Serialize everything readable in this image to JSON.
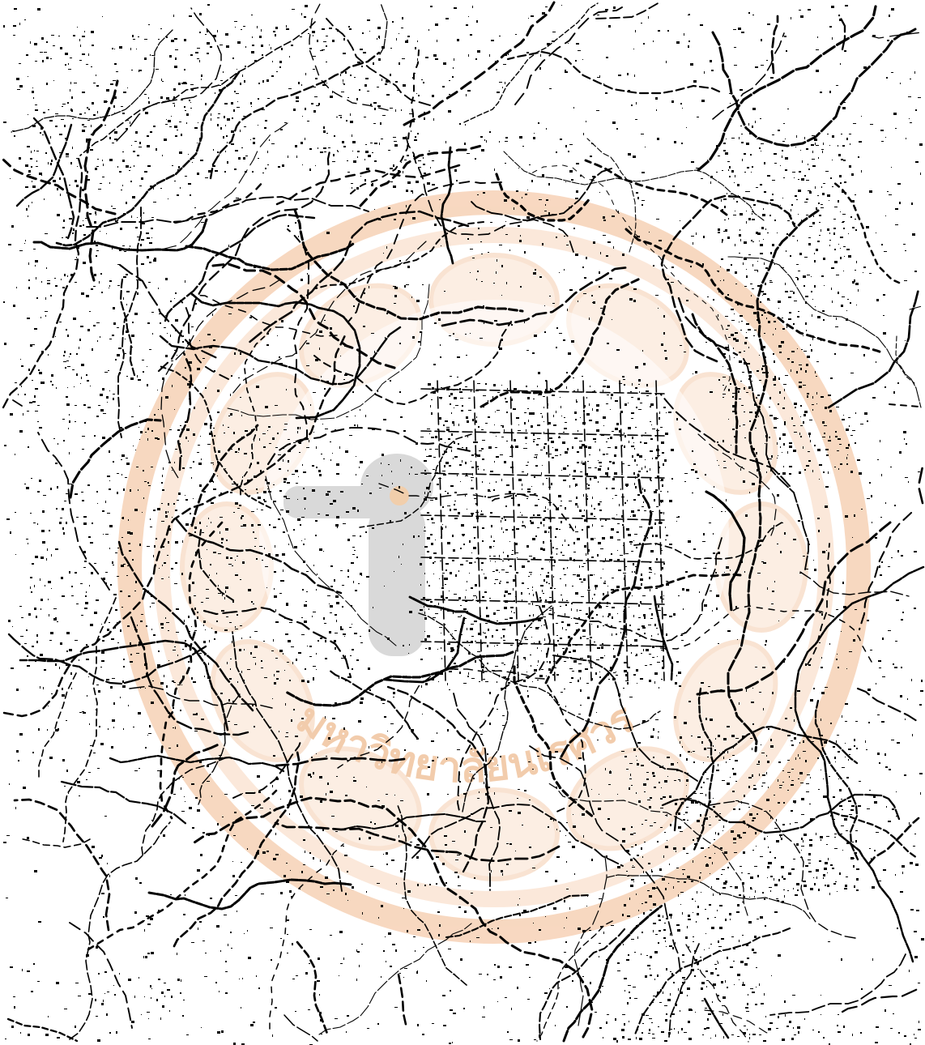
{
  "map": {
    "kind": "binarized scanned map / aerial photo",
    "ink_color": "#000000",
    "paper_color": "#ffffff"
  },
  "watermark": {
    "icon": "university-seal-icon",
    "text": "มหาวิทยาลัยนเรศวร",
    "ring_color": "#f5c9a8",
    "ring_light_color": "#fbe6d6",
    "figure_color": "#cfcfcf"
  }
}
